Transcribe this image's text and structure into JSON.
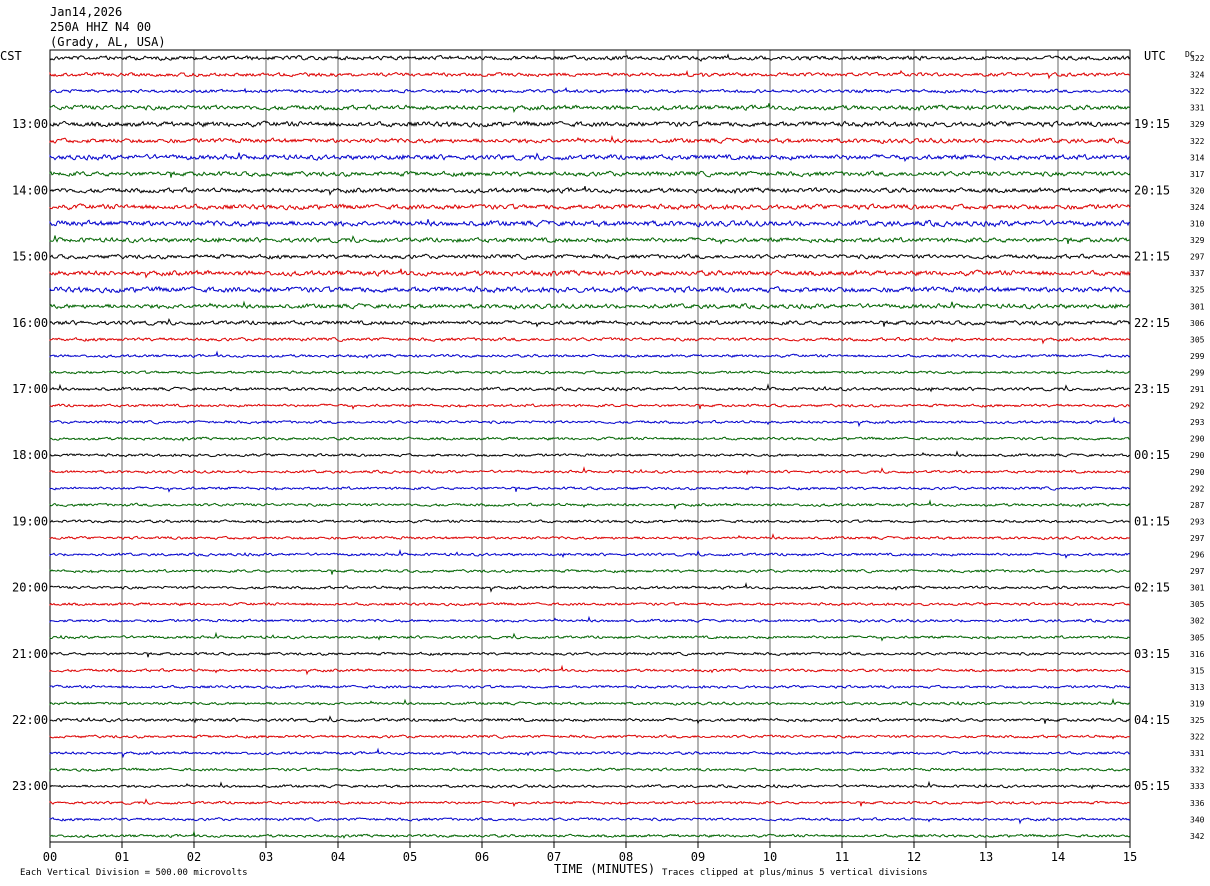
{
  "header": {
    "date": "Jan14,2026",
    "station": "250A HHZ N4 00",
    "location": "(Grady, AL, USA)"
  },
  "labels": {
    "left_tz": "CST",
    "right_tz": "UTC",
    "dc": "DC"
  },
  "footer": {
    "scale": "Each Vertical Division =  500.00 microvolts",
    "xlabel": "TIME (MINUTES)",
    "clip_note": "Traces clipped at plus/minus 5 vertical divisions"
  },
  "colors": {
    "trace_cycle": [
      "#000000",
      "#dd0000",
      "#0000cc",
      "#006400"
    ],
    "grid": "#000000",
    "background": "#ffffff"
  },
  "chart_data": {
    "type": "line",
    "description_free": true,
    "xlabel": "TIME (MINUTES)",
    "x_ticks": [
      "00",
      "01",
      "02",
      "03",
      "04",
      "05",
      "06",
      "07",
      "08",
      "09",
      "10",
      "11",
      "12",
      "13",
      "14",
      "15"
    ],
    "xlim": [
      0,
      15
    ],
    "left_hour_labels": [
      "13:00",
      "14:00",
      "15:00",
      "16:00",
      "17:00",
      "18:00",
      "19:00",
      "20:00",
      "21:00",
      "22:00",
      "23:00"
    ],
    "right_hour_labels": [
      "19:15",
      "20:15",
      "21:15",
      "22:15",
      "23:15",
      "00:15",
      "01:15",
      "02:15",
      "03:15",
      "04:15",
      "05:15"
    ],
    "dc_offsets": [
      322,
      324,
      322,
      331,
      329,
      322,
      314,
      317,
      320,
      324,
      310,
      329,
      297,
      337,
      325,
      301,
      306,
      305,
      299,
      299,
      291,
      292,
      293,
      290,
      290,
      290,
      292,
      287,
      293,
      297,
      296,
      297,
      301,
      305,
      302,
      305,
      316,
      315,
      313,
      319,
      325,
      322,
      331,
      332,
      333,
      336,
      340,
      342
    ],
    "trace_amplitudes": [
      0.9,
      0.8,
      0.7,
      1.0,
      1.1,
      1.0,
      1.1,
      1.0,
      1.0,
      1.1,
      1.2,
      1.0,
      0.9,
      1.1,
      1.2,
      1.0,
      0.9,
      0.7,
      0.6,
      0.6,
      0.7,
      0.6,
      0.6,
      0.6,
      0.6,
      0.6,
      0.6,
      0.6,
      0.6,
      0.6,
      0.6,
      0.6,
      0.6,
      0.6,
      0.6,
      0.6,
      0.6,
      0.6,
      0.6,
      0.6,
      0.7,
      0.6,
      0.6,
      0.6,
      0.6,
      0.6,
      0.6,
      0.6
    ]
  }
}
